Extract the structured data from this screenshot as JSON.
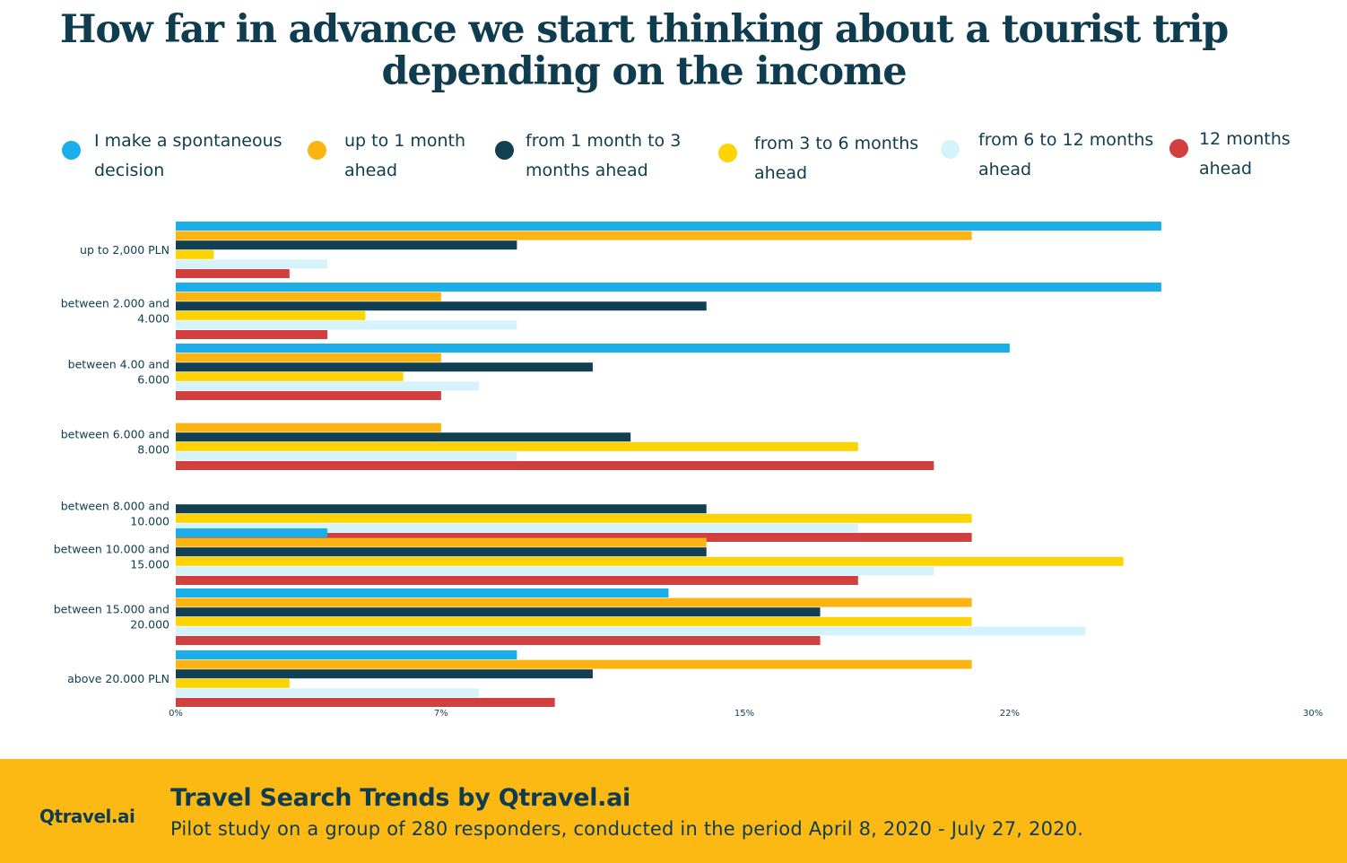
{
  "title_lines": [
    "How far in advance we start thinking about a tourist trip",
    "depending on the income"
  ],
  "footer": {
    "brand": "Qtravel.ai",
    "heading": "Travel Search Trends by Qtravel.ai",
    "text": "Pilot study on a group of 280 responders, conducted in the period April 8, 2020 - July 27, 2020."
  },
  "chart_data": {
    "type": "bar",
    "orientation": "horizontal",
    "title": "How far in advance we start thinking about a tourist trip depending on the income",
    "xlim": [
      0,
      30
    ],
    "x_ticks": [
      0,
      7,
      15,
      22,
      30
    ],
    "x_tick_labels": [
      "0%",
      "7%",
      "15%",
      "22%",
      "30%"
    ],
    "legend_position": "top",
    "grid": false,
    "categories": [
      [
        "up to 2,000 PLN"
      ],
      [
        "between 2.000 and",
        "4.000"
      ],
      [
        "between 4.00 and",
        "6.000"
      ],
      [
        "between 6.000 and",
        "8.000"
      ],
      [
        "between 8.000 and",
        "10.000"
      ],
      [
        "between 10.000 and",
        "15.000"
      ],
      [
        "between 15.000 and",
        "20.000"
      ],
      [
        "above 20.000 PLN"
      ]
    ],
    "series": [
      {
        "name": [
          "I make a spontaneous",
          "decision"
        ],
        "color": "#1aaeea",
        "values": [
          26,
          26,
          22,
          0,
          0,
          4,
          13,
          9
        ]
      },
      {
        "name": [
          "up to 1 month",
          "ahead"
        ],
        "color": "#fbb411",
        "values": [
          21,
          7,
          7,
          7,
          0,
          14,
          21,
          21
        ]
      },
      {
        "name": [
          "from 1 month to 3",
          "months ahead"
        ],
        "color": "#123f52",
        "values": [
          9,
          14,
          11,
          12,
          14,
          14,
          17,
          11
        ]
      },
      {
        "name": [
          "from 3 to 6 months",
          "ahead"
        ],
        "color": "#fdd300",
        "values": [
          1,
          5,
          6,
          18,
          21,
          25,
          21,
          3
        ]
      },
      {
        "name": [
          "from 6 to 12 months",
          "ahead"
        ],
        "color": "#d6f3fb",
        "values": [
          4,
          9,
          8,
          9,
          18,
          20,
          24,
          8
        ]
      },
      {
        "name": [
          "12 months",
          "ahead"
        ],
        "color": "#d13f3f",
        "values": [
          3,
          4,
          7,
          20,
          21,
          18,
          17,
          10
        ]
      }
    ]
  }
}
